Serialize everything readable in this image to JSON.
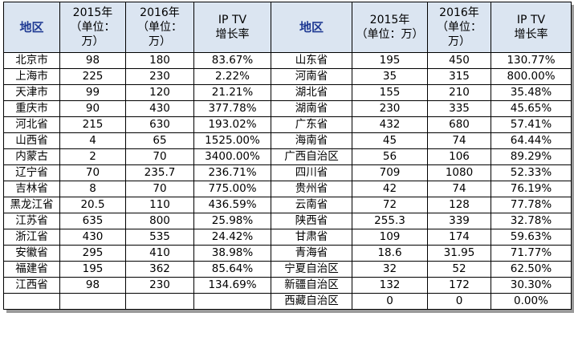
{
  "headers": {
    "left": {
      "region": "地区",
      "y2015": [
        "2015年",
        "（单位：",
        "万）"
      ],
      "y2016": [
        "2016年",
        "（单位：",
        "万）"
      ],
      "growth": [
        "IP TV",
        "增长率"
      ]
    },
    "right": {
      "region": "地区",
      "y2015": [
        "2015年",
        "（单位：万）"
      ],
      "y2016": [
        "2016年",
        "（单位：",
        "万）"
      ],
      "growth": [
        "IP TV",
        "增长率"
      ]
    }
  },
  "left_rows": [
    {
      "region": "北京市",
      "y2015": "98",
      "y2016": "180",
      "growth": "83.67%"
    },
    {
      "region": "上海市",
      "y2015": "225",
      "y2016": "230",
      "growth": "2.22%"
    },
    {
      "region": "天津市",
      "y2015": "99",
      "y2016": "120",
      "growth": "21.21%"
    },
    {
      "region": "重庆市",
      "y2015": "90",
      "y2016": "430",
      "growth": "377.78%"
    },
    {
      "region": "河北省",
      "y2015": "215",
      "y2016": "630",
      "growth": "193.02%"
    },
    {
      "region": "山西省",
      "y2015": "4",
      "y2016": "65",
      "growth": "1525.00%"
    },
    {
      "region": "内蒙古",
      "y2015": "2",
      "y2016": "70",
      "growth": "3400.00%"
    },
    {
      "region": "辽宁省",
      "y2015": "70",
      "y2016": "235.7",
      "growth": "236.71%"
    },
    {
      "region": "吉林省",
      "y2015": "8",
      "y2016": "70",
      "growth": "775.00%"
    },
    {
      "region": "黑龙江省",
      "y2015": "20.5",
      "y2016": "110",
      "growth": "436.59%"
    },
    {
      "region": "江苏省",
      "y2015": "635",
      "y2016": "800",
      "growth": "25.98%"
    },
    {
      "region": "浙江省",
      "y2015": "430",
      "y2016": "535",
      "growth": "24.42%"
    },
    {
      "region": "安徽省",
      "y2015": "295",
      "y2016": "410",
      "growth": "38.98%"
    },
    {
      "region": "福建省",
      "y2015": "195",
      "y2016": "362",
      "growth": "85.64%"
    },
    {
      "region": "江西省",
      "y2015": "98",
      "y2016": "230",
      "growth": "134.69%"
    },
    {
      "region": "",
      "y2015": "",
      "y2016": "",
      "growth": ""
    }
  ],
  "right_rows": [
    {
      "region": "山东省",
      "y2015": "195",
      "y2016": "450",
      "growth": "130.77%"
    },
    {
      "region": "河南省",
      "y2015": "35",
      "y2016": "315",
      "growth": "800.00%"
    },
    {
      "region": "湖北省",
      "y2015": "155",
      "y2016": "210",
      "growth": "35.48%"
    },
    {
      "region": "湖南省",
      "y2015": "230",
      "y2016": "335",
      "growth": "45.65%"
    },
    {
      "region": "广东省",
      "y2015": "432",
      "y2016": "680",
      "growth": "57.41%"
    },
    {
      "region": "海南省",
      "y2015": "45",
      "y2016": "74",
      "growth": "64.44%"
    },
    {
      "region": "广西自治区",
      "y2015": "56",
      "y2016": "106",
      "growth": "89.29%"
    },
    {
      "region": "四川省",
      "y2015": "709",
      "y2016": "1080",
      "growth": "52.33%"
    },
    {
      "region": "贵州省",
      "y2015": "42",
      "y2016": "74",
      "growth": "76.19%"
    },
    {
      "region": "云南省",
      "y2015": "72",
      "y2016": "128",
      "growth": "77.78%"
    },
    {
      "region": "陕西省",
      "y2015": "255.3",
      "y2016": "339",
      "growth": "32.78%"
    },
    {
      "region": "甘肃省",
      "y2015": "109",
      "y2016": "174",
      "growth": "59.63%"
    },
    {
      "region": "青海省",
      "y2015": "18.6",
      "y2016": "31.95",
      "growth": "71.77%"
    },
    {
      "region": "宁夏自治区",
      "y2015": "32",
      "y2016": "52",
      "growth": "62.50%"
    },
    {
      "region": "新疆自治区",
      "y2015": "132",
      "y2016": "172",
      "growth": "30.30%"
    },
    {
      "region": "西藏自治区",
      "y2015": "0",
      "y2016": "0",
      "growth": "0.00%"
    }
  ],
  "colors": {
    "header_bg": "#dbe5f1",
    "region_header_text": "#1f3a93",
    "border": "#000000",
    "shadow": "#9a9a9a"
  }
}
